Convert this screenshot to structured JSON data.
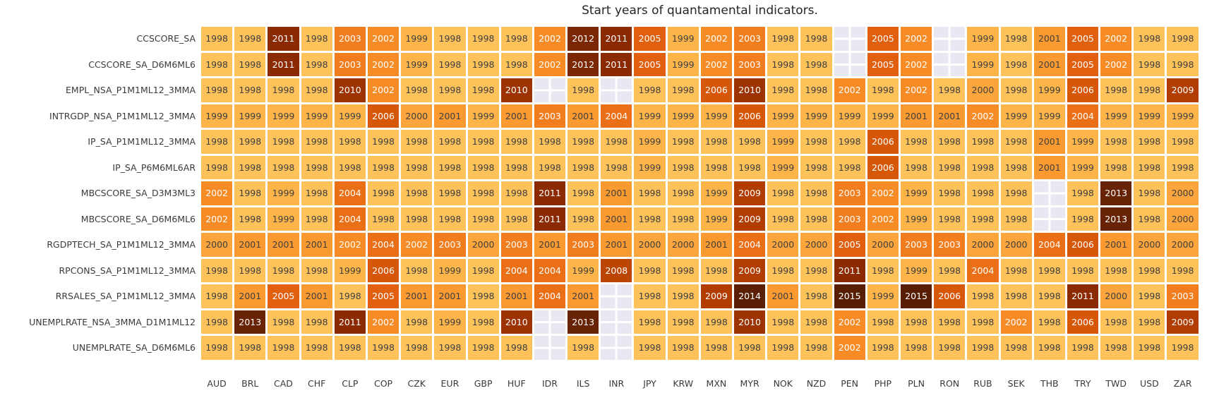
{
  "title": "Start years of quantamental indicators.",
  "chart_data": {
    "type": "heatmap",
    "title": "Start years of quantamental indicators.",
    "legend": "none",
    "grid_gap_color": "#ffffff",
    "value_domain": [
      1998,
      2015
    ],
    "columns": [
      "AUD",
      "BRL",
      "CAD",
      "CHF",
      "CLP",
      "COP",
      "CZK",
      "EUR",
      "GBP",
      "HUF",
      "IDR",
      "ILS",
      "INR",
      "JPY",
      "KRW",
      "MXN",
      "MYR",
      "NOK",
      "NZD",
      "PEN",
      "PHP",
      "PLN",
      "RON",
      "RUB",
      "SEK",
      "THB",
      "TRY",
      "TWD",
      "USD",
      "ZAR"
    ],
    "rows": [
      {
        "label": "CCSCORE_SA",
        "values": [
          1998,
          1998,
          2011,
          1998,
          2003,
          2002,
          1999,
          1998,
          1998,
          1998,
          2002,
          2012,
          2011,
          2005,
          1999,
          2002,
          2003,
          1998,
          1998,
          null,
          2005,
          2002,
          null,
          1999,
          1998,
          2001,
          2005,
          2002,
          1998,
          1998
        ]
      },
      {
        "label": "CCSCORE_SA_D6M6ML6",
        "values": [
          1998,
          1998,
          2011,
          1998,
          2003,
          2002,
          1999,
          1998,
          1998,
          1998,
          2002,
          2012,
          2011,
          2005,
          1999,
          2002,
          2003,
          1998,
          1998,
          null,
          2005,
          2002,
          null,
          1999,
          1998,
          2001,
          2005,
          2002,
          1998,
          1998
        ]
      },
      {
        "label": "EMPL_NSA_P1M1ML12_3MMA",
        "values": [
          1998,
          1998,
          1998,
          1998,
          2010,
          2002,
          1998,
          1998,
          1998,
          2010,
          null,
          1998,
          null,
          1998,
          1998,
          2006,
          2010,
          1998,
          1998,
          2002,
          1998,
          2002,
          1998,
          2000,
          1998,
          1999,
          2006,
          1998,
          1998,
          2009
        ]
      },
      {
        "label": "INTRGDP_NSA_P1M1ML12_3MMA",
        "values": [
          1999,
          1999,
          1999,
          1999,
          1999,
          2006,
          2000,
          2001,
          1999,
          2001,
          2003,
          2001,
          2004,
          1999,
          1999,
          1999,
          2006,
          1999,
          1999,
          1999,
          1999,
          2001,
          2001,
          2002,
          1999,
          1999,
          2004,
          1999,
          1999,
          1999
        ]
      },
      {
        "label": "IP_SA_P1M1ML12_3MMA",
        "values": [
          1998,
          1998,
          1998,
          1998,
          1998,
          1998,
          1998,
          1998,
          1998,
          1998,
          1998,
          1998,
          1998,
          1999,
          1998,
          1998,
          1998,
          1999,
          1998,
          1998,
          2006,
          1998,
          1998,
          1998,
          1998,
          2001,
          1999,
          1998,
          1998,
          1998
        ]
      },
      {
        "label": "IP_SA_P6M6ML6AR",
        "values": [
          1998,
          1998,
          1998,
          1998,
          1998,
          1998,
          1998,
          1998,
          1998,
          1998,
          1998,
          1998,
          1998,
          1999,
          1998,
          1998,
          1998,
          1999,
          1998,
          1998,
          2006,
          1998,
          1998,
          1998,
          1998,
          2001,
          1999,
          1998,
          1998,
          1998
        ]
      },
      {
        "label": "MBCSCORE_SA_D3M3ML3",
        "values": [
          2002,
          1998,
          1999,
          1998,
          2004,
          1998,
          1998,
          1998,
          1998,
          1998,
          2011,
          1998,
          2001,
          1998,
          1998,
          1999,
          2009,
          1998,
          1998,
          2003,
          2002,
          1999,
          1998,
          1998,
          1998,
          null,
          1998,
          2013,
          1998,
          2000
        ]
      },
      {
        "label": "MBCSCORE_SA_D6M6ML6",
        "values": [
          2002,
          1998,
          1999,
          1998,
          2004,
          1998,
          1998,
          1998,
          1998,
          1998,
          2011,
          1998,
          2001,
          1998,
          1998,
          1999,
          2009,
          1998,
          1998,
          2003,
          2002,
          1999,
          1998,
          1998,
          1998,
          null,
          1998,
          2013,
          1998,
          2000
        ]
      },
      {
        "label": "RGDPTECH_SA_P1M1ML12_3MMA",
        "values": [
          2000,
          2001,
          2001,
          2001,
          2002,
          2004,
          2002,
          2003,
          2000,
          2003,
          2001,
          2003,
          2001,
          2000,
          2000,
          2001,
          2004,
          2000,
          2000,
          2005,
          2000,
          2003,
          2003,
          2000,
          2000,
          2004,
          2006,
          2001,
          2000,
          2000
        ]
      },
      {
        "label": "RPCONS_SA_P1M1ML12_3MMA",
        "values": [
          1998,
          1998,
          1998,
          1998,
          1999,
          2006,
          1998,
          1999,
          1998,
          2004,
          2004,
          1999,
          2008,
          1998,
          1998,
          1998,
          2009,
          1998,
          1998,
          2011,
          1998,
          1999,
          1998,
          2004,
          1998,
          1998,
          1998,
          1998,
          1998,
          1998
        ]
      },
      {
        "label": "RRSALES_SA_P1M1ML12_3MMA",
        "values": [
          1998,
          2001,
          2005,
          2001,
          1998,
          2005,
          2001,
          2001,
          1998,
          2001,
          2004,
          2001,
          null,
          1998,
          1998,
          2009,
          2014,
          2001,
          1998,
          2015,
          1999,
          2015,
          2006,
          1998,
          1998,
          1998,
          2011,
          2000,
          1998,
          2003
        ]
      },
      {
        "label": "UNEMPLRATE_NSA_3MMA_D1M1ML12",
        "values": [
          1998,
          2013,
          1998,
          1998,
          2011,
          2002,
          1998,
          1999,
          1998,
          2010,
          null,
          2013,
          null,
          1998,
          1998,
          1998,
          2010,
          1998,
          1998,
          2002,
          1998,
          1998,
          1998,
          1998,
          2002,
          1998,
          2006,
          1998,
          1998,
          2009
        ]
      },
      {
        "label": "UNEMPLRATE_SA_D6M6ML6",
        "values": [
          1998,
          1998,
          1998,
          1998,
          1998,
          1998,
          1998,
          1998,
          1998,
          1998,
          null,
          1998,
          null,
          1998,
          1998,
          1998,
          1998,
          1998,
          1998,
          2002,
          1998,
          1998,
          1998,
          1998,
          1998,
          1998,
          1998,
          1998,
          1998,
          1998
        ]
      }
    ],
    "colors": {
      "year_colors": {
        "1998": "#fdc25a",
        "1999": "#fdb54a",
        "2000": "#fca53c",
        "2001": "#fb9a31",
        "2002": "#f78c27",
        "2003": "#f17d1e",
        "2004": "#ea6f16",
        "2005": "#e0600f",
        "2006": "#d65708",
        "2008": "#bd4503",
        "2009": "#b23d03",
        "2010": "#9d3203",
        "2011": "#8c2b03",
        "2012": "#7c2704",
        "2013": "#682205",
        "2014": "#5a1f04",
        "2015": "#571e03"
      },
      "empty_cell": "#e9e8f2",
      "dark_text": "#3f3f3f",
      "light_text": "#ffffff",
      "white_text_min_year": 2002,
      "background": "#ffffff"
    }
  }
}
